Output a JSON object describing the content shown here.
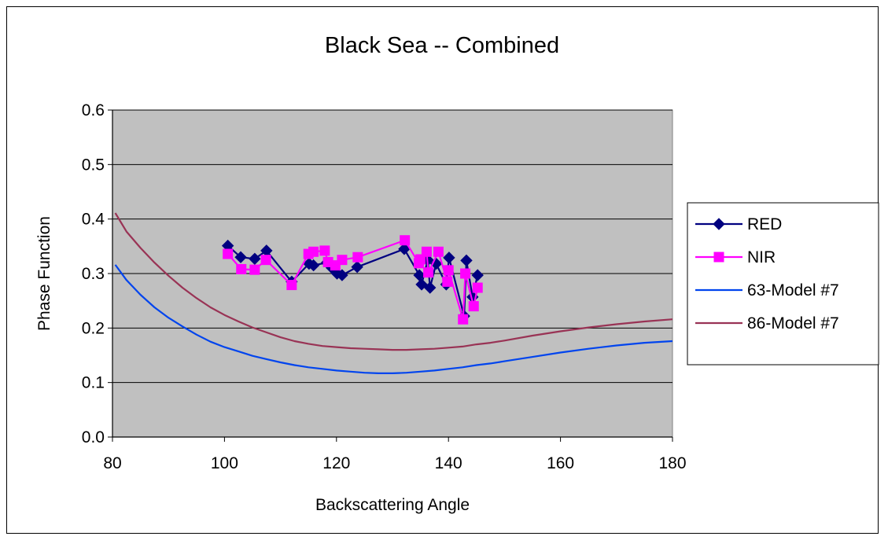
{
  "chart_data": {
    "type": "line",
    "title": "Black Sea -- Combined",
    "xlabel": "Backscattering Angle",
    "ylabel": "Phase Function",
    "xlim": [
      80,
      180
    ],
    "ylim": [
      0.0,
      0.6
    ],
    "x_ticks": [
      "80",
      "100",
      "120",
      "140",
      "160",
      "180"
    ],
    "y_ticks": [
      "0.0",
      "0.1",
      "0.2",
      "0.3",
      "0.4",
      "0.5",
      "0.6"
    ],
    "x_tick_values": [
      80,
      100,
      120,
      140,
      160,
      180
    ],
    "y_tick_values": [
      0.0,
      0.1,
      0.2,
      0.3,
      0.4,
      0.5,
      0.6
    ],
    "grid": "horizontal",
    "plot_background": "#c0c0c0",
    "legend_position": "right",
    "series": [
      {
        "name": "RED",
        "color": "#000080",
        "marker": "diamond",
        "points": [
          [
            100.6,
            0.351
          ],
          [
            102.9,
            0.33
          ],
          [
            105.4,
            0.327
          ],
          [
            107.5,
            0.342
          ],
          [
            112.0,
            0.285
          ],
          [
            115.1,
            0.318
          ],
          [
            115.9,
            0.315
          ],
          [
            118.3,
            0.32
          ],
          [
            119.2,
            0.31
          ],
          [
            120.1,
            0.3
          ],
          [
            121.0,
            0.297
          ],
          [
            123.7,
            0.312
          ],
          [
            132.1,
            0.345
          ],
          [
            134.8,
            0.297
          ],
          [
            135.2,
            0.28
          ],
          [
            136.3,
            0.325
          ],
          [
            136.7,
            0.274
          ],
          [
            137.8,
            0.318
          ],
          [
            139.6,
            0.28
          ],
          [
            140.1,
            0.329
          ],
          [
            142.8,
            0.222
          ],
          [
            143.2,
            0.324
          ],
          [
            144.3,
            0.257
          ],
          [
            145.2,
            0.297
          ]
        ]
      },
      {
        "name": "NIR",
        "color": "#ff00ff",
        "marker": "square",
        "points": [
          [
            100.6,
            0.336
          ],
          [
            103.0,
            0.308
          ],
          [
            105.4,
            0.307
          ],
          [
            107.4,
            0.325
          ],
          [
            112.0,
            0.279
          ],
          [
            115.0,
            0.336
          ],
          [
            115.9,
            0.34
          ],
          [
            117.9,
            0.342
          ],
          [
            118.5,
            0.321
          ],
          [
            119.8,
            0.315
          ],
          [
            121.0,
            0.325
          ],
          [
            123.8,
            0.33
          ],
          [
            132.2,
            0.361
          ],
          [
            134.7,
            0.319
          ],
          [
            135.0,
            0.326
          ],
          [
            136.1,
            0.34
          ],
          [
            136.4,
            0.302
          ],
          [
            138.2,
            0.34
          ],
          [
            139.8,
            0.285
          ],
          [
            140.0,
            0.306
          ],
          [
            142.6,
            0.216
          ],
          [
            143.0,
            0.3
          ],
          [
            144.5,
            0.24
          ],
          [
            145.2,
            0.274
          ]
        ]
      },
      {
        "name": "63-Model #7",
        "color": "#0044ee",
        "marker": "none",
        "points": [
          [
            80.5,
            0.316
          ],
          [
            82.5,
            0.288
          ],
          [
            85.0,
            0.261
          ],
          [
            87.5,
            0.238
          ],
          [
            90.0,
            0.219
          ],
          [
            92.5,
            0.203
          ],
          [
            95.0,
            0.188
          ],
          [
            97.5,
            0.175
          ],
          [
            100.0,
            0.165
          ],
          [
            102.5,
            0.157
          ],
          [
            105.0,
            0.149
          ],
          [
            107.5,
            0.143
          ],
          [
            110.0,
            0.137
          ],
          [
            112.5,
            0.132
          ],
          [
            115.0,
            0.128
          ],
          [
            117.5,
            0.125
          ],
          [
            120.0,
            0.122
          ],
          [
            122.5,
            0.12
          ],
          [
            125.0,
            0.118
          ],
          [
            127.5,
            0.117
          ],
          [
            130.0,
            0.117
          ],
          [
            132.5,
            0.118
          ],
          [
            135.0,
            0.12
          ],
          [
            137.5,
            0.122
          ],
          [
            140.0,
            0.125
          ],
          [
            142.5,
            0.128
          ],
          [
            145.0,
            0.132
          ],
          [
            147.5,
            0.135
          ],
          [
            150.0,
            0.139
          ],
          [
            155.0,
            0.147
          ],
          [
            160.0,
            0.155
          ],
          [
            165.0,
            0.162
          ],
          [
            170.0,
            0.168
          ],
          [
            175.0,
            0.173
          ],
          [
            180.0,
            0.176
          ]
        ]
      },
      {
        "name": "86-Model #7",
        "color": "#993355",
        "marker": "none",
        "points": [
          [
            80.5,
            0.411
          ],
          [
            82.5,
            0.377
          ],
          [
            85.0,
            0.347
          ],
          [
            87.5,
            0.32
          ],
          [
            90.0,
            0.296
          ],
          [
            92.5,
            0.274
          ],
          [
            95.0,
            0.255
          ],
          [
            97.5,
            0.238
          ],
          [
            100.0,
            0.224
          ],
          [
            102.5,
            0.212
          ],
          [
            105.0,
            0.201
          ],
          [
            107.5,
            0.192
          ],
          [
            110.0,
            0.183
          ],
          [
            112.5,
            0.176
          ],
          [
            115.0,
            0.171
          ],
          [
            117.5,
            0.167
          ],
          [
            120.0,
            0.165
          ],
          [
            122.5,
            0.163
          ],
          [
            125.0,
            0.162
          ],
          [
            127.5,
            0.161
          ],
          [
            130.0,
            0.16
          ],
          [
            132.5,
            0.16
          ],
          [
            135.0,
            0.161
          ],
          [
            137.5,
            0.162
          ],
          [
            140.0,
            0.164
          ],
          [
            142.5,
            0.166
          ],
          [
            145.0,
            0.17
          ],
          [
            147.5,
            0.173
          ],
          [
            150.0,
            0.177
          ],
          [
            155.0,
            0.186
          ],
          [
            160.0,
            0.194
          ],
          [
            165.0,
            0.201
          ],
          [
            170.0,
            0.207
          ],
          [
            175.0,
            0.212
          ],
          [
            180.0,
            0.216
          ]
        ]
      }
    ]
  }
}
